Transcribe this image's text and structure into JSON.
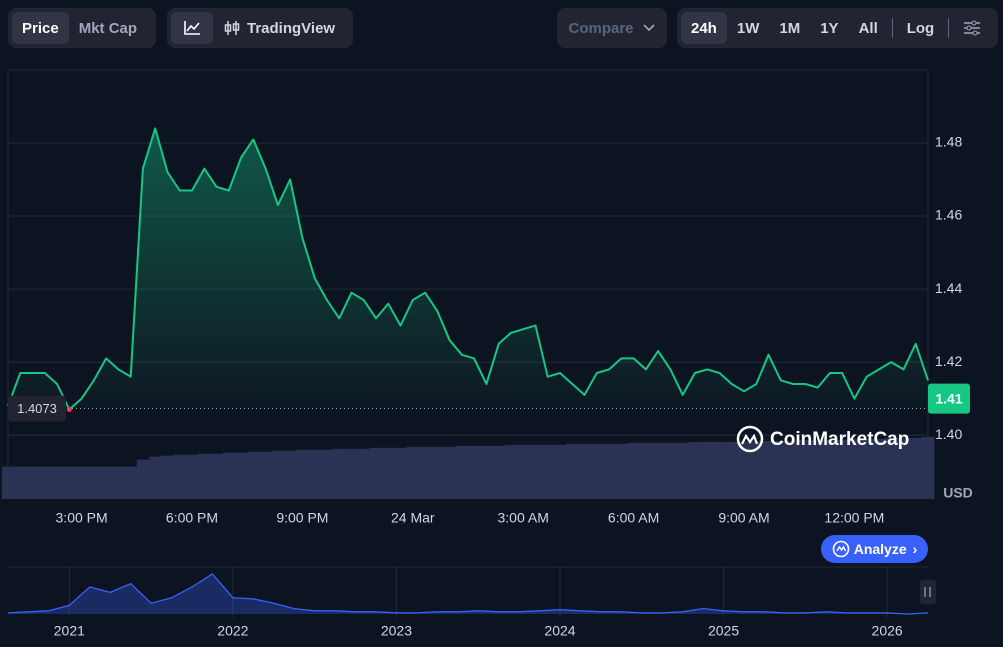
{
  "toolbar": {
    "metric_tabs": [
      "Price",
      "Mkt Cap"
    ],
    "view_button": "TradingView",
    "compare_button": "Compare",
    "ranges": [
      "24h",
      "1W",
      "1M",
      "1Y",
      "All"
    ],
    "scale_button": "Log"
  },
  "chart_data": {
    "type": "line",
    "categories": [
      null,
      null,
      null,
      null,
      null,
      null,
      "3:00 PM",
      null,
      null,
      null,
      null,
      null,
      null,
      null,
      null,
      "6:00 PM",
      null,
      null,
      null,
      null,
      null,
      null,
      null,
      null,
      "9:00 PM",
      null,
      null,
      null,
      null,
      null,
      null,
      null,
      null,
      "24 Mar",
      null,
      null,
      null,
      null,
      null,
      null,
      null,
      null,
      "3:00 AM",
      null,
      null,
      null,
      null,
      null,
      null,
      null,
      null,
      "6:00 AM",
      null,
      null,
      null,
      null,
      null,
      null,
      null,
      null,
      "9:00 AM",
      null,
      null,
      null,
      null,
      null,
      null,
      null,
      null,
      "12:00 PM",
      null,
      null,
      null,
      null,
      null,
      null
    ],
    "series": [
      {
        "name": "Price",
        "color": "#16c784",
        "values": [
          1.408,
          1.417,
          1.417,
          1.417,
          1.414,
          1.407,
          1.41,
          1.415,
          1.421,
          1.418,
          1.416,
          1.473,
          1.484,
          1.472,
          1.467,
          1.467,
          1.473,
          1.468,
          1.467,
          1.476,
          1.481,
          1.473,
          1.463,
          1.47,
          1.454,
          1.443,
          1.437,
          1.432,
          1.439,
          1.437,
          1.432,
          1.436,
          1.43,
          1.437,
          1.439,
          1.434,
          1.426,
          1.422,
          1.421,
          1.414,
          1.425,
          1.428,
          1.429,
          1.43,
          1.416,
          1.417,
          1.414,
          1.411,
          1.417,
          1.418,
          1.421,
          1.421,
          1.418,
          1.423,
          1.418,
          1.411,
          1.417,
          1.418,
          1.417,
          1.414,
          1.412,
          1.414,
          1.422,
          1.415,
          1.414,
          1.414,
          1.413,
          1.417,
          1.417,
          1.41,
          1.416,
          1.418,
          1.42,
          1.418,
          1.425,
          1.415
        ]
      }
    ],
    "volume": [
      33,
      33,
      33,
      33,
      33,
      33,
      33,
      33,
      33,
      33,
      33,
      40,
      43,
      44,
      45,
      45,
      46,
      46,
      47,
      47,
      48,
      48,
      49,
      49,
      50,
      50,
      50,
      51,
      51,
      51,
      52,
      52,
      52,
      53,
      53,
      53,
      53,
      54,
      54,
      54,
      54,
      55,
      55,
      55,
      55,
      55,
      56,
      56,
      56,
      56,
      56,
      57,
      57,
      57,
      57,
      57,
      58,
      58,
      58,
      58,
      58,
      59,
      59,
      59,
      59,
      60,
      60,
      60,
      60,
      61,
      61,
      61,
      62,
      62,
      62,
      63
    ],
    "ylim": [
      1.3825,
      1.5
    ],
    "yticks": [
      {
        "value": 1.4,
        "label": "1.40"
      },
      1.42,
      1.44,
      1.46,
      1.48
    ],
    "y_label": "USD",
    "grid": true,
    "open_price": 1.4073,
    "current_price": 1.41,
    "below_open_color": "#ea3943",
    "navigator": {
      "categories": [
        null,
        null,
        null,
        "2021",
        null,
        null,
        null,
        null,
        null,
        null,
        null,
        "2022",
        null,
        null,
        null,
        null,
        null,
        null,
        null,
        "2023",
        null,
        null,
        null,
        null,
        null,
        null,
        null,
        "2024",
        null,
        null,
        null,
        null,
        null,
        null,
        null,
        "2025",
        null,
        null,
        null,
        null,
        null,
        null,
        null,
        "2026",
        null,
        null
      ],
      "color": "#3861fb",
      "values": [
        1,
        2,
        3,
        8,
        25,
        20,
        28,
        10,
        15,
        25,
        37,
        15,
        14,
        10,
        5,
        3,
        3,
        2,
        2,
        1,
        1,
        2,
        2,
        3,
        2,
        2,
        3,
        4,
        3,
        2,
        2,
        1,
        1,
        2,
        5,
        3,
        2,
        2,
        1,
        1,
        2,
        1,
        1,
        1,
        0,
        1
      ]
    }
  },
  "watermark": "CoinMarketCap",
  "analyze_button": "Analyze"
}
